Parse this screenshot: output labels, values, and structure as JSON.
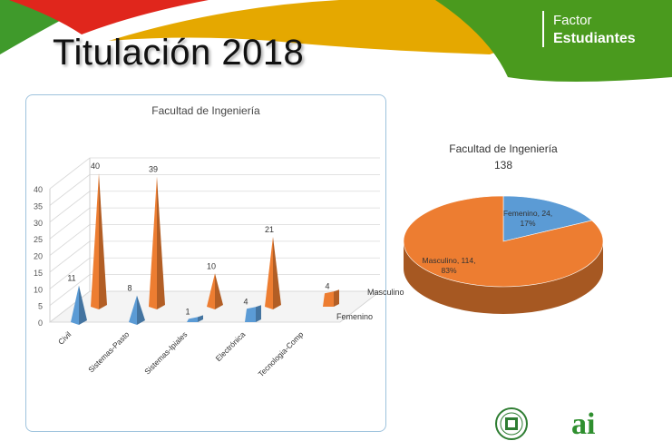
{
  "slide": {
    "title": "Titulación 2018"
  },
  "brand": {
    "line1": "Factor",
    "line2": "Estudiantes"
  },
  "logos": {
    "seal": "university-seal",
    "ai": "ai"
  },
  "colors": {
    "orange": "#ED7D31",
    "blue": "#5B9BD5",
    "green": "#4a9a1e",
    "red": "#e0261c",
    "gold": "#e5a800"
  },
  "chart_data": [
    {
      "type": "bar",
      "title": "Facultad de Ingeniería",
      "categories": [
        "Civil",
        "Sistemas-Pasto",
        "Sistemas-Ipiales",
        "Electrónica",
        "Tecnologia-Comp"
      ],
      "series": [
        {
          "name": "Femenino",
          "values": [
            11,
            8,
            1,
            4,
            null
          ]
        },
        {
          "name": "Masculino",
          "values": [
            40,
            39,
            10,
            21,
            4
          ]
        }
      ],
      "ylim": [
        0,
        40
      ],
      "yticks": [
        0,
        5,
        10,
        15,
        20,
        25,
        30,
        35,
        40
      ],
      "grid": true,
      "style": "3d-cone"
    },
    {
      "type": "pie",
      "title": "Facultad de Ingeniería",
      "subtitle": "138",
      "slices": [
        {
          "label": "Femenino",
          "value": 24,
          "percent": "17%"
        },
        {
          "label": "Masculino",
          "value": 114,
          "percent": "83%"
        }
      ],
      "slice_labels": [
        "Femenino, 24,",
        "17%",
        "Masculino, 114,",
        "83%"
      ],
      "style": "3d"
    }
  ]
}
